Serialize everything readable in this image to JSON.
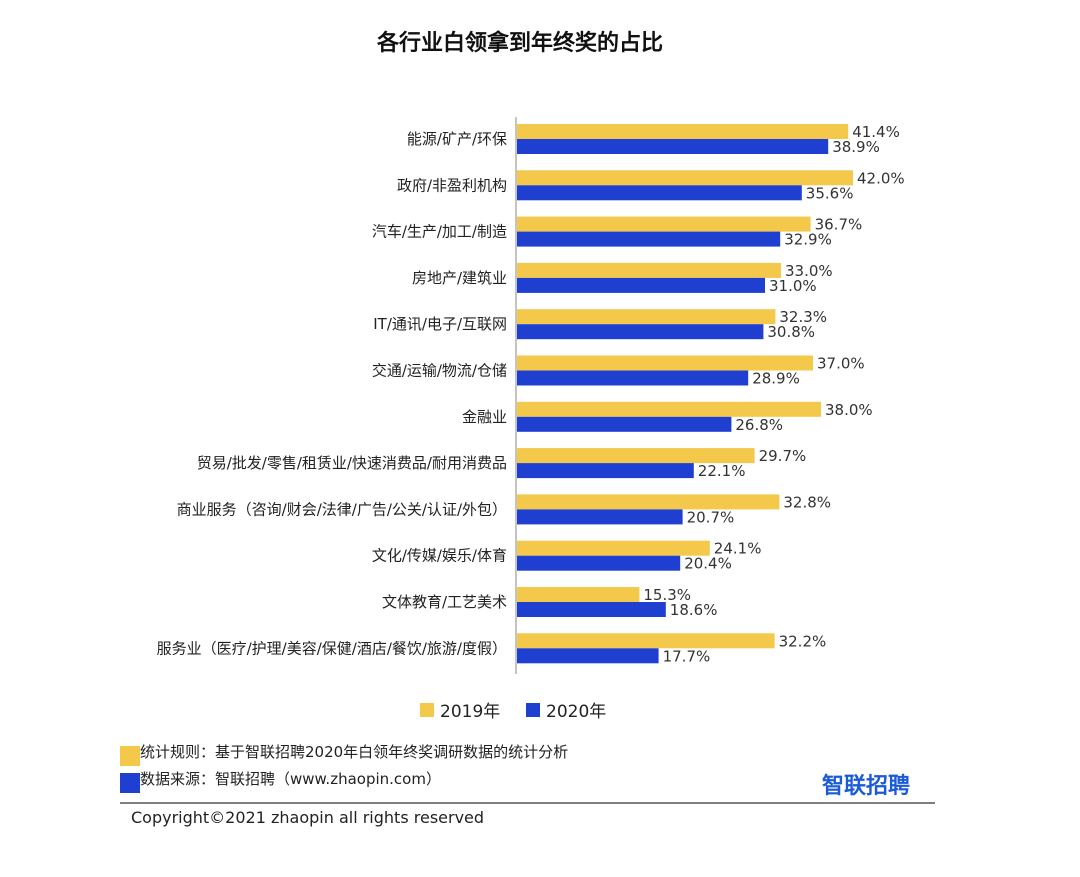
{
  "chart_data": {
    "type": "bar",
    "orientation": "horizontal",
    "title": "各行业白领拿到年终奖的占比",
    "categories": [
      "能源/矿产/环保",
      "政府/非盈利机构",
      "汽车/生产/加工/制造",
      "房地产/建筑业",
      "IT/通讯/电子/互联网",
      "交通/运输/物流/仓储",
      "金融业",
      "贸易/批发/零售/租赁业/快速消费品/耐用消费品",
      "商业服务（咨询/财会/法律/广告/公关/认证/外包）",
      "文化/传媒/娱乐/体育",
      "文体教育/工艺美术",
      "服务业（医疗/护理/美容/保健/酒店/餐饮/旅游/度假）"
    ],
    "series": [
      {
        "name": "2019年",
        "color": "#f3c84b",
        "values": [
          41.4,
          42.0,
          36.7,
          33.0,
          32.3,
          37.0,
          38.0,
          29.7,
          32.8,
          24.1,
          15.3,
          32.2
        ],
        "labels": [
          "41.4%",
          "42.0%",
          "36.7%",
          "33.0%",
          "32.3%",
          "37.0%",
          "38.0%",
          "29.7%",
          "32.8%",
          "24.1%",
          "15.3%",
          "32.2%"
        ]
      },
      {
        "name": "2020年",
        "color": "#1f3fd1",
        "values": [
          38.9,
          35.6,
          32.9,
          31.0,
          30.8,
          28.9,
          26.8,
          22.1,
          20.7,
          20.4,
          18.6,
          17.7
        ],
        "labels": [
          "38.9%",
          "35.6%",
          "32.9%",
          "31.0%",
          "30.8%",
          "28.9%",
          "26.8%",
          "22.1%",
          "20.7%",
          "20.4%",
          "18.6%",
          "17.7%"
        ]
      }
    ],
    "xlim": [
      0,
      45
    ],
    "grid": false,
    "legend_position": "bottom"
  },
  "notes": [
    {
      "text": "统计规则：基于智联招聘2020年白领年终奖调研数据的统计分析",
      "color": "#f3c84b"
    },
    {
      "text": "数据来源：智联招聘（www.zhaopin.com）",
      "color": "#1f3fd1"
    }
  ],
  "logo": {
    "text": "智联招聘",
    "color": "#1c5bd6"
  },
  "copyright": "Copyright©2021 zhaopin all rights reserved"
}
